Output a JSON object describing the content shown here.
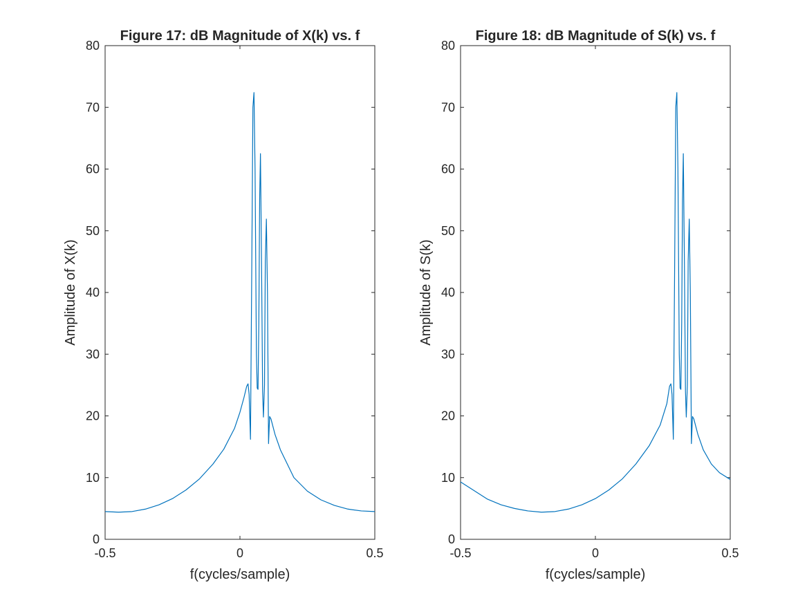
{
  "figure": {
    "background": "#ffffff"
  },
  "chart_data": [
    {
      "type": "line",
      "title": "Figure 17: dB Magnitude of X(k) vs. f",
      "xlabel": "f(cycles/sample)",
      "ylabel": "Amplitude of X(k)",
      "xlim": [
        -0.5,
        0.5
      ],
      "ylim": [
        0,
        80
      ],
      "xticks": [
        -0.5,
        0,
        0.5
      ],
      "xtick_labels": [
        "-0.5",
        "0",
        "0.5"
      ],
      "yticks": [
        0,
        10,
        20,
        30,
        40,
        50,
        60,
        70,
        80
      ],
      "ytick_labels": [
        "0",
        "10",
        "20",
        "30",
        "40",
        "50",
        "60",
        "70",
        "80"
      ],
      "grid": false,
      "line_color": "#0072bd",
      "series": [
        {
          "x": [
            -0.5,
            -0.45,
            -0.4,
            -0.35,
            -0.3,
            -0.25,
            -0.2,
            -0.15,
            -0.1,
            -0.06,
            -0.02,
            0.0,
            0.015,
            0.025,
            0.03,
            0.034,
            0.039,
            0.044,
            0.048,
            0.052,
            0.056,
            0.061,
            0.064,
            0.067,
            0.07,
            0.073,
            0.076,
            0.08,
            0.084,
            0.087,
            0.091,
            0.094,
            0.098,
            0.102,
            0.106,
            0.11,
            0.115,
            0.13,
            0.15,
            0.2,
            0.25,
            0.3,
            0.35,
            0.4,
            0.45,
            0.5
          ],
          "y": [
            4.5,
            4.4,
            4.5,
            4.9,
            5.6,
            6.6,
            8.0,
            9.8,
            12.2,
            14.6,
            18.0,
            20.6,
            23.0,
            24.8,
            25.2,
            23.5,
            16.2,
            45.0,
            70.0,
            72.4,
            60.0,
            30.0,
            24.5,
            24.3,
            35.0,
            55.0,
            62.5,
            45.0,
            24.0,
            19.8,
            25.0,
            45.0,
            51.9,
            40.0,
            15.5,
            19.9,
            19.5,
            17.0,
            14.5,
            10.0,
            7.8,
            6.4,
            5.5,
            4.9,
            4.6,
            4.5
          ]
        }
      ]
    },
    {
      "type": "line",
      "title": "Figure 18: dB Magnitude of S(k) vs. f",
      "xlabel": "f(cycles/sample)",
      "ylabel": "Amplitude of S(k)",
      "xlim": [
        -0.5,
        0.5
      ],
      "ylim": [
        0,
        80
      ],
      "xticks": [
        -0.5,
        0,
        0.5
      ],
      "xtick_labels": [
        "-0.5",
        "0",
        "0.5"
      ],
      "yticks": [
        0,
        10,
        20,
        30,
        40,
        50,
        60,
        70,
        80
      ],
      "ytick_labels": [
        "0",
        "10",
        "20",
        "30",
        "40",
        "50",
        "60",
        "70",
        "80"
      ],
      "grid": false,
      "line_color": "#0072bd",
      "series": [
        {
          "x": [
            -0.5,
            -0.45,
            -0.4,
            -0.35,
            -0.3,
            -0.25,
            -0.2,
            -0.15,
            -0.1,
            -0.05,
            0.0,
            0.05,
            0.1,
            0.15,
            0.2,
            0.24,
            0.265,
            0.275,
            0.28,
            0.284,
            0.289,
            0.294,
            0.298,
            0.302,
            0.306,
            0.311,
            0.314,
            0.317,
            0.32,
            0.323,
            0.326,
            0.33,
            0.334,
            0.337,
            0.341,
            0.344,
            0.348,
            0.352,
            0.356,
            0.36,
            0.365,
            0.38,
            0.4,
            0.43,
            0.46,
            0.5
          ],
          "y": [
            9.3,
            7.9,
            6.5,
            5.6,
            5.0,
            4.6,
            4.4,
            4.5,
            4.9,
            5.6,
            6.6,
            8.0,
            9.8,
            12.2,
            15.2,
            18.5,
            22.0,
            24.8,
            25.2,
            23.5,
            16.2,
            45.0,
            70.0,
            72.4,
            60.0,
            30.0,
            24.5,
            24.3,
            35.0,
            55.0,
            62.5,
            45.0,
            24.0,
            19.8,
            25.0,
            45.0,
            51.9,
            40.0,
            15.5,
            19.9,
            19.5,
            17.0,
            14.5,
            12.2,
            10.8,
            9.7
          ]
        }
      ]
    }
  ]
}
